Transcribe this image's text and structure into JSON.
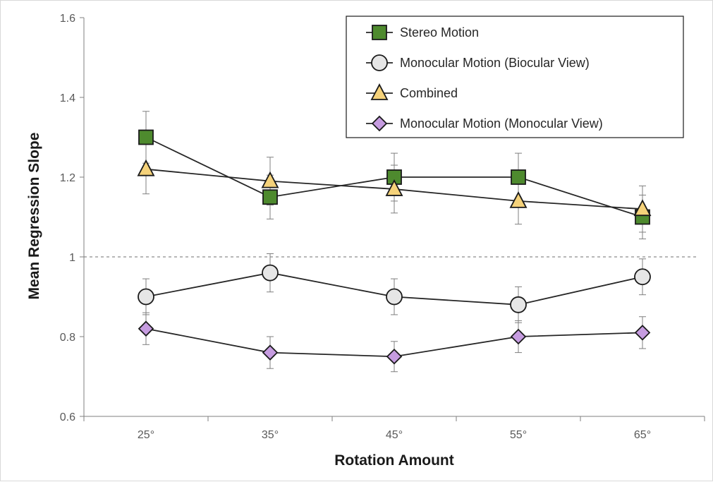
{
  "chart_data": {
    "type": "line",
    "xlabel": "Rotation Amount",
    "ylabel": "Mean Regression Slope",
    "categories": [
      "25°",
      "35°",
      "45°",
      "55°",
      "65°"
    ],
    "ylim": [
      0.6,
      1.6
    ],
    "yticks": [
      "0.6",
      "0.8",
      "1",
      "1.2",
      "1.4",
      "1.6"
    ],
    "reference_line": 1.0,
    "grid": false,
    "legend_position": "top-right",
    "series": [
      {
        "name": "Stereo Motion",
        "marker": "square",
        "fill": "#4e8a2e",
        "values": [
          1.3,
          1.15,
          1.2,
          1.2,
          1.1
        ],
        "error": [
          0.065,
          0.055,
          0.06,
          0.06,
          0.055
        ]
      },
      {
        "name": "Monocular Motion (Biocular View)",
        "marker": "circle",
        "fill": "#e6e6e6",
        "values": [
          0.9,
          0.96,
          0.9,
          0.88,
          0.95
        ],
        "error": [
          0.045,
          0.048,
          0.045,
          0.045,
          0.045
        ]
      },
      {
        "name": "Combined",
        "marker": "triangle",
        "fill": "#f5d27a",
        "values": [
          1.22,
          1.19,
          1.17,
          1.14,
          1.12
        ],
        "error": [
          0.062,
          0.06,
          0.06,
          0.058,
          0.058
        ]
      },
      {
        "name": "Monocular Motion (Monocular View)",
        "marker": "diamond",
        "fill": "#c69ce0",
        "values": [
          0.82,
          0.76,
          0.75,
          0.8,
          0.81
        ],
        "error": [
          0.04,
          0.04,
          0.038,
          0.04,
          0.04
        ]
      }
    ]
  }
}
